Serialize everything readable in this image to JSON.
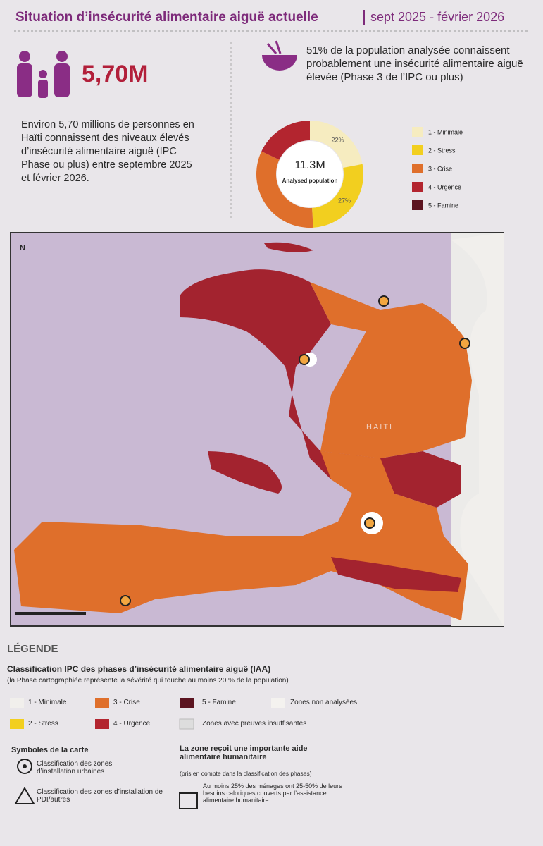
{
  "header": {
    "title": "Situation d’insécurité alimentaire aiguë actuelle",
    "period": "sept 2025 - février 2026"
  },
  "summary": {
    "headline": "5,70M",
    "text": "Environ 5,70 millions de personnes en Haïti connaissent des niveaux élevés d’insécurité alimentaire aiguë (IPC Phase ou plus) entre septembre 2025 et février 2026."
  },
  "analysis_note": "51% de la population analysée connaissent probablement une insécurité alimentaire aiguë élevée (Phase 3 de l’IPC ou plus)",
  "chart_data": {
    "type": "pie",
    "center_value": "11.3M",
    "center_label": "Analysed population",
    "categories": [
      "1 - Minimale",
      "2 - Stress",
      "3 - Crise",
      "4 - Urgence",
      "5 - Famine"
    ],
    "values": [
      22,
      27,
      33,
      18,
      0
    ],
    "value_labels": [
      "22%",
      "27%",
      null,
      null,
      null
    ],
    "colors": [
      "#f6ecc0",
      "#f2cf1f",
      "#df6f2b",
      "#b3252f",
      "#5c1420"
    ]
  },
  "map": {
    "country_label": "HAITI",
    "north": "N"
  },
  "legend": {
    "title": "LÉGENDE",
    "subtitle": "Classification IPC des phases d’insécurité alimentaire aiguë (IAA)",
    "note": "(la Phase cartographiée représente la sévérité qui touche au moins 20 % de la population)",
    "not_analysed": "Zones non analysées",
    "insufficient": "Zones avec preuves insuffisantes",
    "symbols_title": "Symboles de la carte",
    "urban": "Classification des zones d’installation urbaines",
    "idp": "Classification des zones d’installation de PDI/autres",
    "aid_title": "La zone reçoit une importante aide alimentaire humanitaire",
    "aid_note": "(pris en compte dans la classification des phases)",
    "aid_text": "Au moins 25% des ménages ont 25-50% de leurs besoins caloriques couverts par l’assistance alimentaire humanitaire"
  }
}
